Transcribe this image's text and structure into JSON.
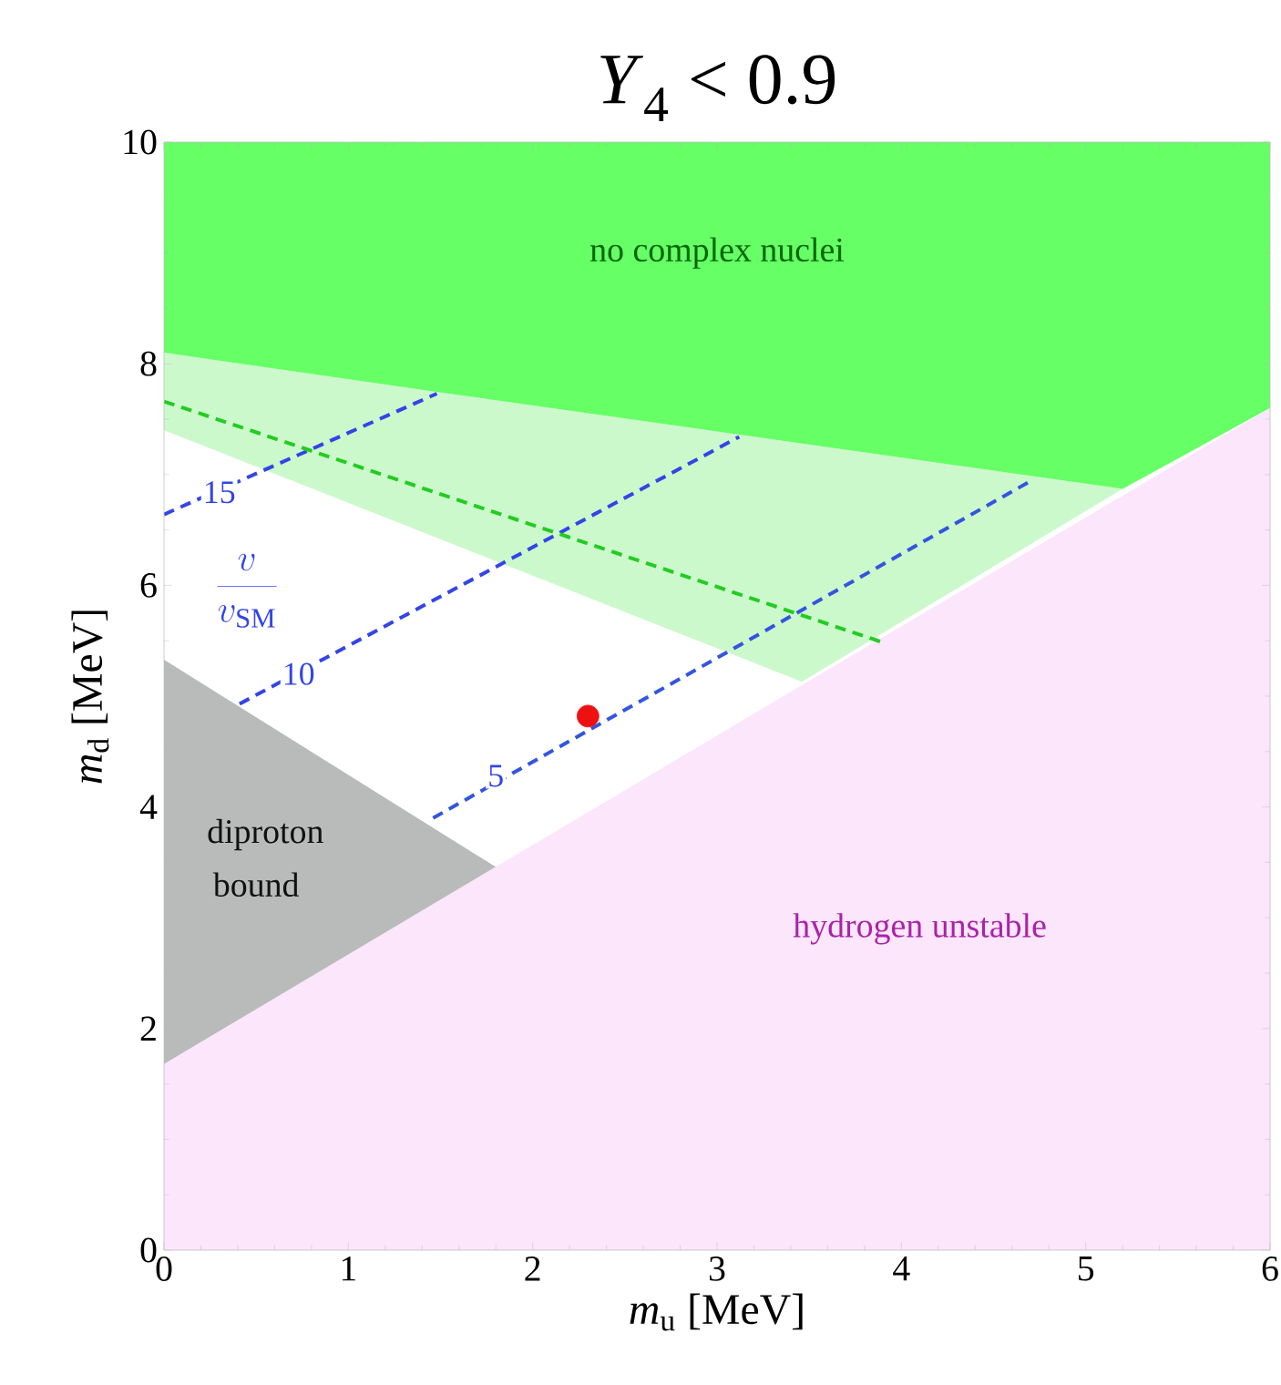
{
  "chart_data": {
    "type": "area",
    "title": "*Y*$_{4}$ < 0.9",
    "xlabel": "*m*$_{u}$ [MeV]",
    "ylabel": "*m*$_{d}$ [MeV]",
    "stacked": true,
    "xlim": [
      0,
      6
    ],
    "ylim": [
      0,
      10
    ],
    "xticks": [
      0,
      1,
      2,
      3,
      4,
      5,
      6
    ],
    "yticks": [
      0,
      2,
      4,
      6,
      8,
      10
    ],
    "grid": false,
    "series": [
      {
        "color": "#fbe6fb",
        "x": [
          0,
          1.8,
          3.46,
          5.2,
          6
        ],
        "values": [
          1.68,
          3.46,
          5.1,
          6.81,
          7.6
        ]
      },
      {
        "color": "#b9bbbb",
        "x": [
          0,
          1.8,
          3.46,
          5.2,
          6
        ],
        "values": [
          3.65,
          0,
          0,
          0,
          0
        ]
      },
      {
        "color": "#ffffff",
        "x": [
          0,
          1.8,
          3.46,
          5.2,
          6
        ],
        "values": [
          2.07,
          2.76,
          0.03,
          0.06,
          0
        ]
      },
      {
        "color": "#ccf9cc",
        "x": [
          0,
          1.8,
          3.46,
          5.2,
          6
        ],
        "values": [
          0.7,
          1.45,
          2.15,
          0,
          0
        ]
      },
      {
        "color": "#66ff66",
        "x": [
          0,
          1.8,
          3.46,
          5.2,
          6
        ],
        "values": [
          1.9,
          2.33,
          2.72,
          3.13,
          2.4
        ]
      },
      {
        "type": "line",
        "color": "#3344e8",
        "line_style": "dashed",
        "marker": "none",
        "x": [
          0,
          1.48
        ],
        "values": [
          6.64,
          7.73
        ]
      },
      {
        "type": "line",
        "color": "#3344e8",
        "line_style": "dashed",
        "marker": "none",
        "x": [
          0.41,
          3.12
        ],
        "values": [
          4.93,
          7.34
        ]
      },
      {
        "type": "line",
        "color": "#3355e0",
        "line_style": "dashed",
        "marker": "none",
        "x": [
          1.46,
          4.7
        ],
        "values": [
          3.9,
          6.94
        ]
      },
      {
        "type": "line",
        "color": "#22cc22",
        "line_style": "dashed",
        "marker": "none",
        "x": [
          0,
          3.89
        ],
        "values": [
          7.66,
          5.49
        ]
      },
      {
        "type": "scatter",
        "color": "#ee1111",
        "marker": "circle",
        "x": [
          2.3
        ],
        "values": [
          4.82
        ]
      }
    ],
    "annotations": [
      "no complex nuclei",
      "diproton",
      "bound",
      "hydrogen unstable",
      {
        "text": "15",
        "x": 0.3,
        "y": 6.84
      },
      {
        "text": "10",
        "x": 0.73,
        "y": 5.2
      },
      {
        "text": "5",
        "x": 1.8,
        "y": 4.28
      },
      "\\frac{v}{v_{\\mathrm{SM}}}"
    ]
  }
}
